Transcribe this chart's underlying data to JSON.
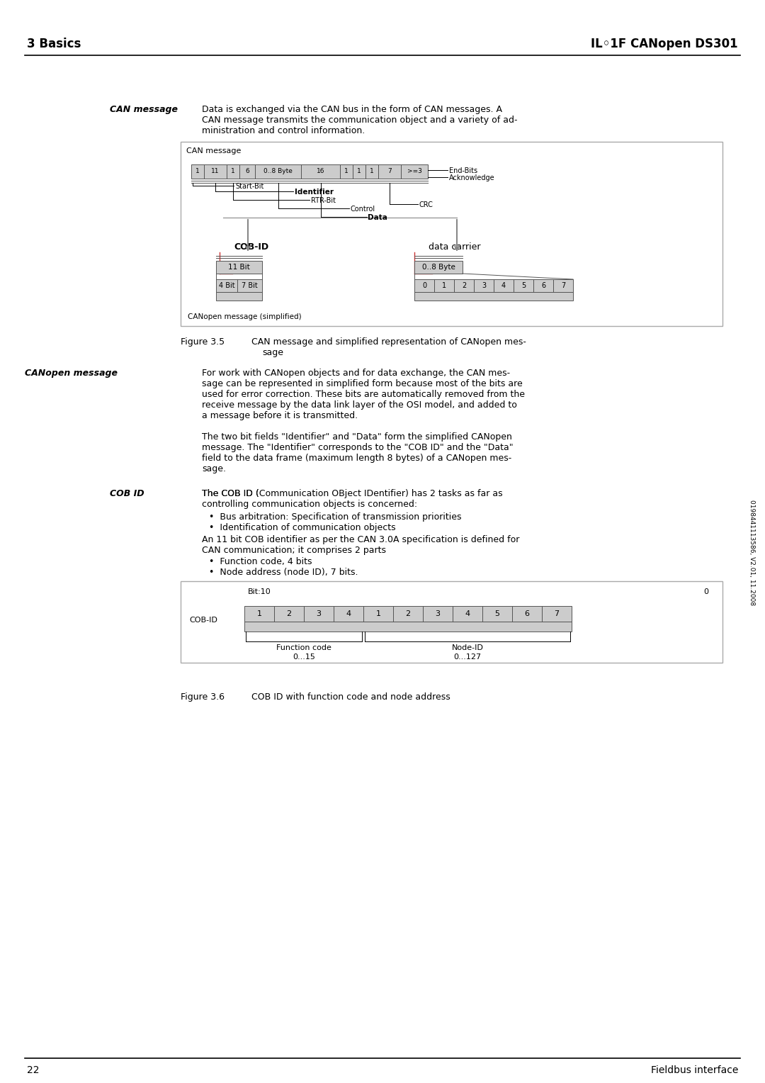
{
  "page_title_left": "3 Basics",
  "page_title_right": "IL◦1F CANopen DS301",
  "page_number": "22",
  "page_footer_right": "Fieldbus interface",
  "sidebar_text": "0198441113586, V2.01, 11.2008",
  "bg_color": "#ffffff",
  "cell_bg": "#cccccc",
  "cell_border": "#555555",
  "can_cells": [
    "1",
    "11",
    "1",
    "6",
    "0..8 Byte",
    "16",
    "1",
    "1",
    "1",
    "7",
    ">=3"
  ],
  "can_cell_widths": [
    18,
    32,
    18,
    22,
    65,
    55,
    18,
    18,
    18,
    32,
    38
  ],
  "cob_cells": [
    "1",
    "2",
    "3",
    "4",
    "1",
    "2",
    "3",
    "4",
    "5",
    "6",
    "7"
  ],
  "data_cells_bottom": [
    "0",
    "1",
    "2",
    "3",
    "4",
    "5",
    "6",
    "7"
  ]
}
